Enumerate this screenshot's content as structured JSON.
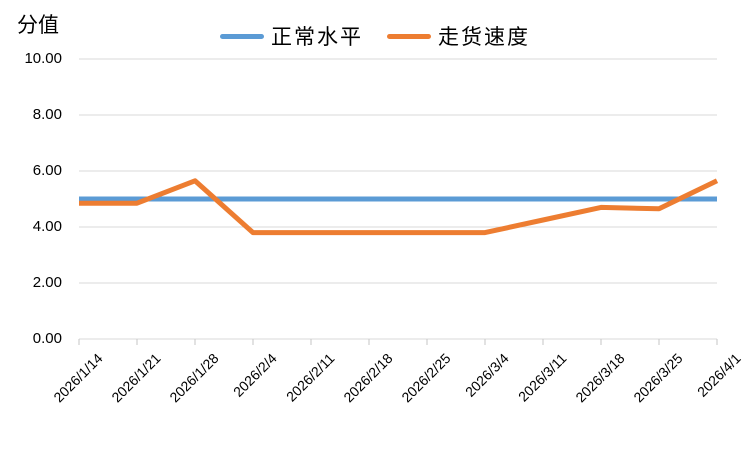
{
  "page": {
    "background": "#FFFFFF"
  },
  "chart_data": {
    "type": "line",
    "title": "",
    "xlabel": "",
    "ylabel": "分值",
    "categories": [
      "2026/1/14",
      "2026/1/21",
      "2026/1/28",
      "2026/2/4",
      "2026/2/11",
      "2026/2/18",
      "2026/2/25",
      "2026/3/4",
      "2026/3/11",
      "2026/3/18",
      "2026/3/25",
      "2026/4/1"
    ],
    "series": [
      {
        "name": "正常水平",
        "color": "#5B9BD5",
        "values": [
          5.0,
          5.0,
          5.0,
          5.0,
          5.0,
          5.0,
          5.0,
          5.0,
          5.0,
          5.0,
          5.0,
          5.0
        ]
      },
      {
        "name": "走货速度",
        "color": "#ED7D31",
        "values": [
          4.85,
          4.85,
          5.65,
          3.8,
          3.8,
          3.8,
          3.8,
          3.8,
          4.25,
          4.7,
          4.65,
          5.65
        ]
      }
    ],
    "ylim": [
      0,
      10
    ],
    "ytick_step": 2,
    "ytick_labels": [
      "0.00",
      "2.00",
      "4.00",
      "6.00",
      "8.00",
      "10.00"
    ],
    "grid": true,
    "gridline_color": "#D9D9D9",
    "tick_color": "#C6C6C6",
    "text_color": "#000000",
    "legend_position": "top-center",
    "x_label_rotation": -45
  }
}
